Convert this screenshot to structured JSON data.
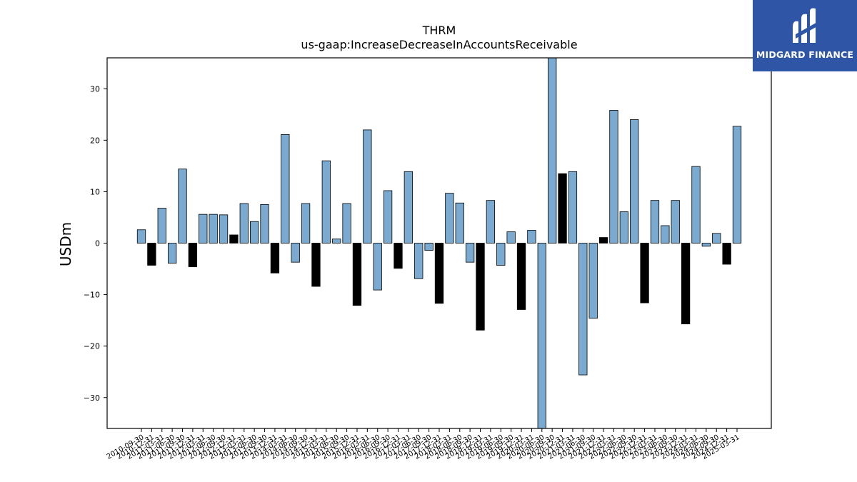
{
  "chart_data": {
    "type": "bar",
    "title": "THRM",
    "subtitle": "us-gaap:IncreaseDecreaseInAccountsReceivable",
    "xlabel": "",
    "ylabel": "USDm",
    "ylim": [
      -36,
      36
    ],
    "yticks": [
      -30,
      -20,
      -10,
      0,
      10,
      20,
      30
    ],
    "grid": false,
    "categories": [
      "2010-09-30",
      "2010-12-31",
      "2011-03-31",
      "2011-06-30",
      "2011-09-30",
      "2011-12-31",
      "2012-03-31",
      "2012-06-30",
      "2012-09-30",
      "2012-12-31",
      "2013-03-31",
      "2013-06-30",
      "2013-09-30",
      "2013-12-31",
      "2014-03-31",
      "2014-06-30",
      "2014-09-30",
      "2014-12-31",
      "2015-03-31",
      "2015-06-30",
      "2015-09-30",
      "2015-12-31",
      "2016-03-31",
      "2016-06-30",
      "2016-09-30",
      "2016-12-31",
      "2017-03-31",
      "2017-06-30",
      "2017-09-30",
      "2017-12-31",
      "2018-03-31",
      "2018-06-30",
      "2018-09-30",
      "2018-12-31",
      "2019-03-31",
      "2019-06-30",
      "2019-09-30",
      "2019-12-31",
      "2020-03-31",
      "2020-06-30",
      "2020-09-30",
      "2020-12-31",
      "2021-03-31",
      "2021-06-30",
      "2021-09-30",
      "2021-12-31",
      "2022-03-31",
      "2022-06-30",
      "2022-09-30",
      "2022-12-31",
      "2023-03-31",
      "2023-06-30",
      "2023-09-30",
      "2023-12-31",
      "2024-03-31",
      "2024-06-30",
      "2024-09-30",
      "2024-12-31",
      "2025-03-31"
    ],
    "values": [
      2.6,
      -4.3,
      6.8,
      -3.9,
      14.4,
      -4.6,
      5.6,
      5.6,
      5.5,
      1.6,
      7.7,
      4.2,
      7.5,
      -5.8,
      21.1,
      -3.7,
      7.7,
      -8.4,
      16.0,
      0.8,
      7.7,
      -12.1,
      22.0,
      -9.1,
      10.2,
      -4.9,
      13.9,
      -6.9,
      -1.4,
      -11.7,
      9.7,
      7.8,
      -3.7,
      -16.9,
      8.3,
      -4.3,
      2.2,
      -12.9,
      2.5,
      -36,
      36,
      13.5,
      13.9,
      -25.6,
      -14.6,
      1.1,
      25.8,
      6.1,
      24.0,
      -11.6,
      8.3,
      3.4,
      8.3,
      -15.7,
      14.9,
      -0.6,
      1.9,
      -4.1,
      22.7
    ],
    "highlight": [
      false,
      true,
      false,
      false,
      false,
      true,
      false,
      false,
      false,
      true,
      false,
      false,
      false,
      true,
      false,
      false,
      false,
      true,
      false,
      false,
      false,
      true,
      false,
      false,
      false,
      true,
      false,
      false,
      false,
      true,
      false,
      false,
      false,
      true,
      false,
      false,
      false,
      true,
      false,
      false,
      false,
      true,
      false,
      false,
      false,
      true,
      false,
      false,
      false,
      true,
      false,
      false,
      false,
      true,
      false,
      false,
      false,
      true,
      false
    ],
    "colors": {
      "bar": "#7aaad0",
      "highlight": "#000000",
      "edge": "#000000"
    }
  },
  "logo": {
    "text": "MIDGARD FINANCE",
    "background": "#2f55a6"
  }
}
